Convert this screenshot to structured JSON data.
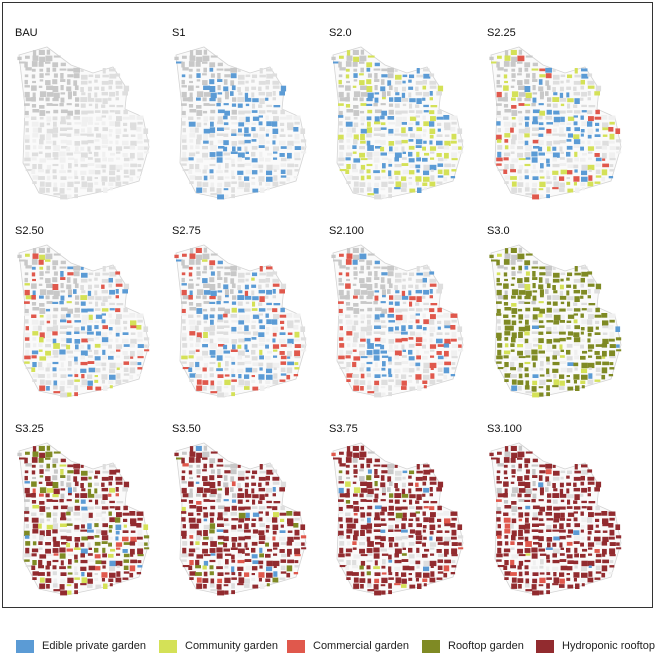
{
  "colors": {
    "building": "#c8c8c8",
    "street": "#dedede",
    "outline": "#d4d4d4",
    "edible_private_garden": "#5b9bd5",
    "community_garden": "#d4e157",
    "commercial_garden": "#e0584c",
    "rooftop_garden": "#7f8a24",
    "hydroponic_rooftop": "#922b2f"
  },
  "panels": [
    {
      "label": "BAU",
      "mix": {
        "edible_private_garden": 0,
        "community_garden": 0,
        "commercial_garden": 0,
        "rooftop_garden": 0,
        "hydroponic_rooftop": 0
      }
    },
    {
      "label": "S1",
      "mix": {
        "edible_private_garden": 0.45,
        "community_garden": 0,
        "commercial_garden": 0,
        "rooftop_garden": 0,
        "hydroponic_rooftop": 0
      }
    },
    {
      "label": "S2.0",
      "mix": {
        "edible_private_garden": 0.45,
        "community_garden": 0.35,
        "commercial_garden": 0,
        "rooftop_garden": 0,
        "hydroponic_rooftop": 0
      }
    },
    {
      "label": "S2.25",
      "mix": {
        "edible_private_garden": 0.45,
        "community_garden": 0.25,
        "commercial_garden": 0.15,
        "rooftop_garden": 0,
        "hydroponic_rooftop": 0
      }
    },
    {
      "label": "S2.50",
      "mix": {
        "edible_private_garden": 0.4,
        "community_garden": 0.15,
        "commercial_garden": 0.25,
        "rooftop_garden": 0,
        "hydroponic_rooftop": 0
      }
    },
    {
      "label": "S2.75",
      "mix": {
        "edible_private_garden": 0.4,
        "community_garden": 0.08,
        "commercial_garden": 0.32,
        "rooftop_garden": 0,
        "hydroponic_rooftop": 0
      }
    },
    {
      "label": "S2.100",
      "mix": {
        "edible_private_garden": 0.4,
        "community_garden": 0,
        "commercial_garden": 0.38,
        "rooftop_garden": 0,
        "hydroponic_rooftop": 0
      }
    },
    {
      "label": "S3.0",
      "mix": {
        "edible_private_garden": 0.25,
        "community_garden": 0.3,
        "commercial_garden": 0,
        "rooftop_garden": 0.8,
        "hydroponic_rooftop": 0
      }
    },
    {
      "label": "S3.25",
      "mix": {
        "edible_private_garden": 0.3,
        "community_garden": 0.3,
        "commercial_garden": 0.2,
        "rooftop_garden": 0.35,
        "hydroponic_rooftop": 0.55
      }
    },
    {
      "label": "S3.50",
      "mix": {
        "edible_private_garden": 0.3,
        "community_garden": 0.15,
        "commercial_garden": 0.25,
        "rooftop_garden": 0.2,
        "hydroponic_rooftop": 0.7
      }
    },
    {
      "label": "S3.75",
      "mix": {
        "edible_private_garden": 0.3,
        "community_garden": 0.1,
        "commercial_garden": 0.3,
        "rooftop_garden": 0.1,
        "hydroponic_rooftop": 0.8
      }
    },
    {
      "label": "S3.100",
      "mix": {
        "edible_private_garden": 0.3,
        "community_garden": 0.05,
        "commercial_garden": 0.35,
        "rooftop_garden": 0,
        "hydroponic_rooftop": 0.85
      }
    }
  ],
  "legend": [
    {
      "key": "edible_private_garden",
      "label": "Edible private garden"
    },
    {
      "key": "community_garden",
      "label": "Community garden"
    },
    {
      "key": "commercial_garden",
      "label": "Commercial garden"
    },
    {
      "key": "rooftop_garden",
      "label": "Rooftop garden"
    },
    {
      "key": "hydroponic_rooftop",
      "label": "Hydroponic rooftop"
    }
  ]
}
